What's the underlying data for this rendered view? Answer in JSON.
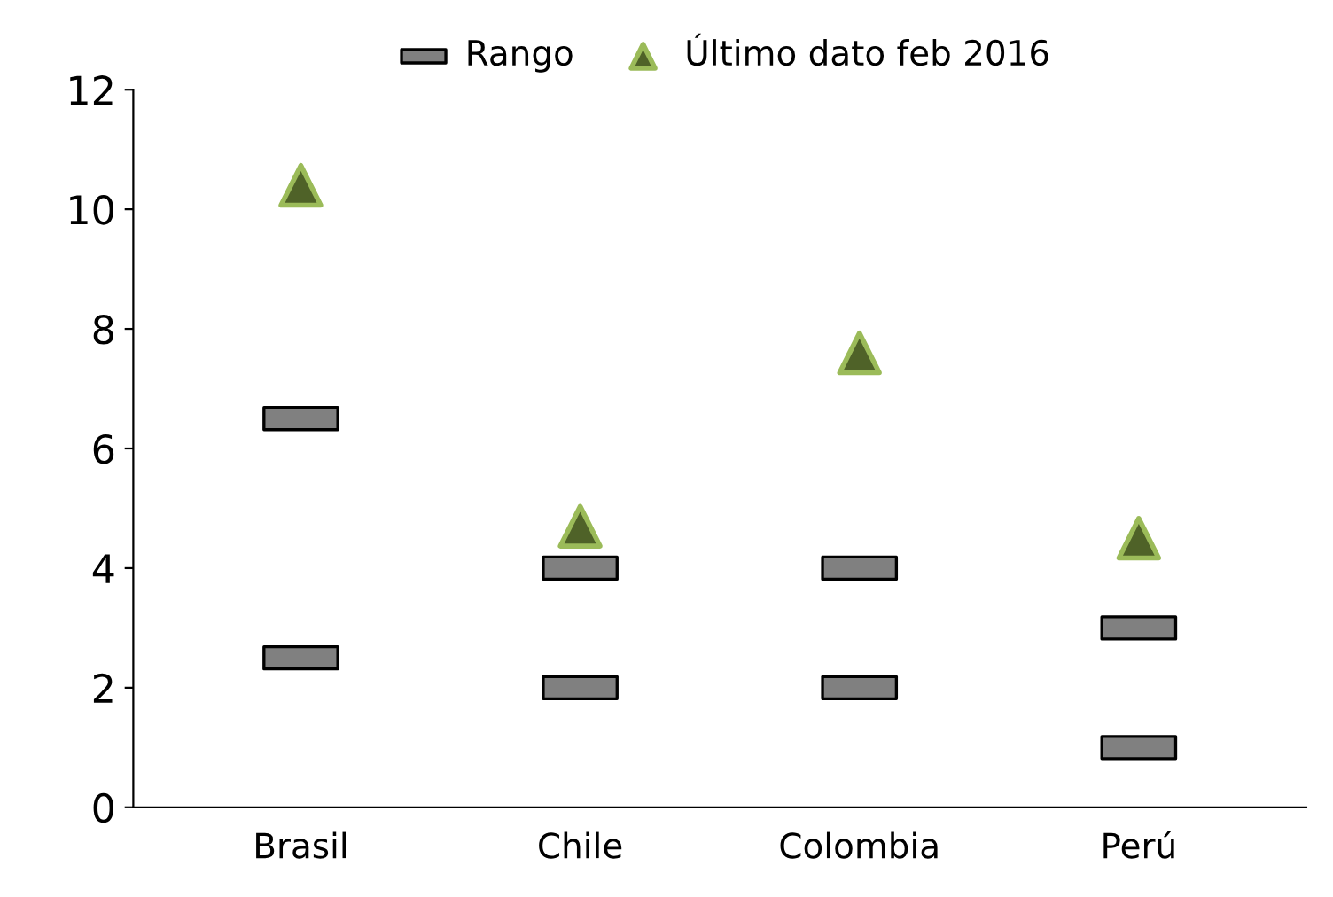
{
  "chart_data": {
    "type": "scatter",
    "categories": [
      "Brasil",
      "Chile",
      "Colombia",
      "Perú"
    ],
    "series": [
      {
        "name": "Rango",
        "color": "#808080",
        "values": [
          2.5,
          2,
          2,
          1
        ]
      },
      {
        "color": "#808080",
        "values": [
          6.5,
          4,
          4,
          3
        ]
      },
      {
        "name": "Último dato feb 2016",
        "color": "#4f6228",
        "marker": "triangle",
        "values": [
          10.4,
          4.7,
          7.6,
          4.5
        ]
      }
    ],
    "ylim": [
      0,
      12
    ],
    "yticks": [
      0,
      2,
      4,
      6,
      8,
      10,
      12
    ],
    "grid": false,
    "legend": "top"
  }
}
